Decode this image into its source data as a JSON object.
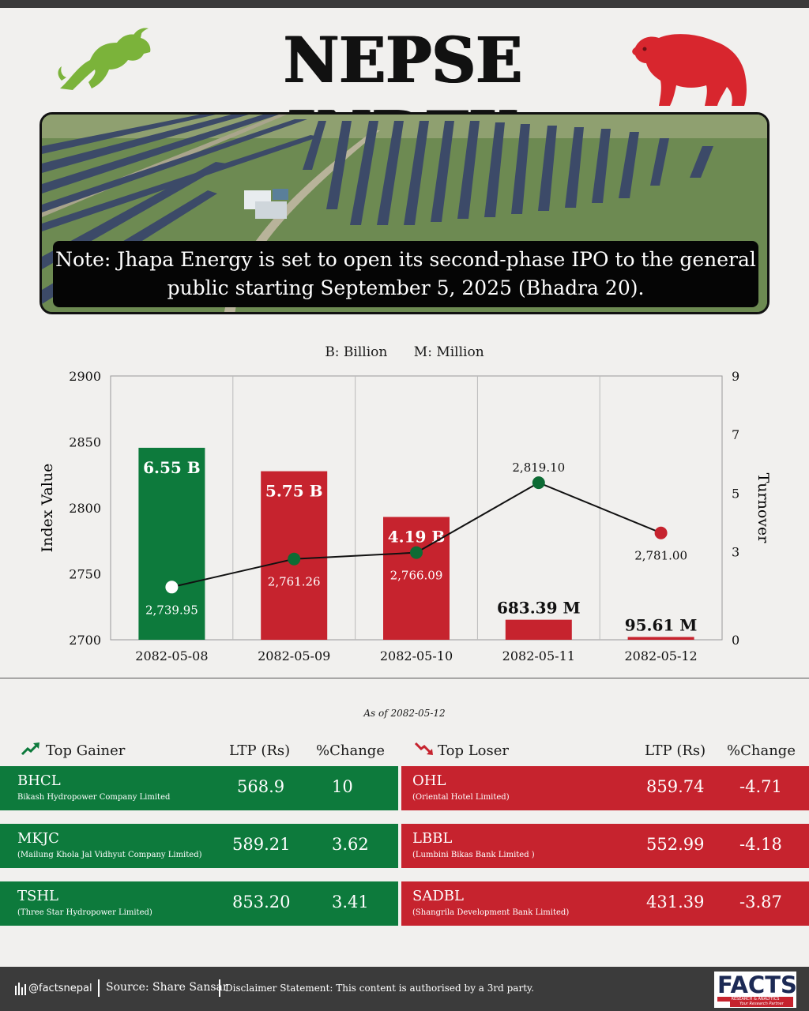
{
  "title": "NEPSE INDEX",
  "note": "Note: Jhapa Energy is set to open its second-phase IPO to the general public starting September 5, 2025 (Bhadra 20).",
  "units_legend": {
    "billion": "B: Billion",
    "million": "M: Million"
  },
  "chart_data": {
    "type": "bar",
    "categories": [
      "2082-05-08",
      "2082-05-09",
      "2082-05-10",
      "2082-05-11",
      "2082-05-12"
    ],
    "series": [
      {
        "type": "bar",
        "axis": "right",
        "values": [
          6.55,
          5.75,
          4.19,
          0.68339,
          0.09561
        ],
        "labels": [
          "6.55 B",
          "5.75 B",
          "4.19 B",
          "683.39 M",
          "95.61 M"
        ],
        "colors": [
          "#0d7a3c",
          "#c6232e",
          "#c6232e",
          "#c6232e",
          "#c6232e"
        ]
      },
      {
        "type": "line",
        "axis": "left",
        "values": [
          2739.95,
          2761.26,
          2766.09,
          2819.1,
          2781.0
        ],
        "labels": [
          "2,739.95",
          "2,761.26",
          "2,766.09",
          "2,819.10",
          "2,781.00"
        ],
        "marker_colors": [
          "#ffffff",
          "#0d6b34",
          "#0d6b34",
          "#0d6b34",
          "#c6232e"
        ]
      }
    ],
    "ylabel": "Index Value",
    "y2label": "Turnover",
    "ylim": [
      2700,
      2900
    ],
    "y2lim": [
      0,
      9
    ],
    "yticks": [
      "2700",
      "2750",
      "2800",
      "2850",
      "2900"
    ],
    "y2ticks": [
      "0",
      "3",
      "5",
      "7",
      "9"
    ],
    "grid": "vertical"
  },
  "as_of": "As of 2082-05-12",
  "gainers": {
    "header": "Top Gainer",
    "ltp_header": "LTP (Rs)",
    "pct_header": "%Change",
    "color": "#0d7a3c",
    "rows": [
      {
        "symbol": "BHCL",
        "name": "Bikash Hydropower Company Limited",
        "ltp": "568.9",
        "pct": "10"
      },
      {
        "symbol": "MKJC",
        "name": "(Mailung Khola Jal Vidhyut Company Limited)",
        "ltp": "589.21",
        "pct": "3.62"
      },
      {
        "symbol": "TSHL",
        "name": "(Three Star Hydropower Limited)",
        "ltp": "853.20",
        "pct": "3.41"
      }
    ]
  },
  "losers": {
    "header": "Top Loser",
    "ltp_header": "LTP (Rs)",
    "pct_header": "%Change",
    "color": "#c6232e",
    "rows": [
      {
        "symbol": "OHL",
        "name": "(Oriental Hotel Limited)",
        "ltp": "859.74",
        "pct": "-4.71"
      },
      {
        "symbol": "LBBL",
        "name": "(Lumbini Bikas Bank Limited )",
        "ltp": "552.99",
        "pct": "-4.18"
      },
      {
        "symbol": "SADBL",
        "name": "(Shangrila Development Bank Limited)",
        "ltp": "431.39",
        "pct": "-3.87"
      }
    ]
  },
  "footer": {
    "handle": "@factsnepal",
    "source": "Source: Share Sansar",
    "disclaimer": "Disclaimer Statement: This content is authorised by a 3rd party.",
    "logo_text": "FACTS",
    "logo_sub": "RESEARCH & ANALYTICS",
    "logo_tagline": "Your Research Partner"
  },
  "icons": {
    "bull": "bull-icon",
    "bear": "bear-icon",
    "gain": "trend-up-icon",
    "loss": "trend-down-icon",
    "chart": "bar-chart-icon"
  }
}
